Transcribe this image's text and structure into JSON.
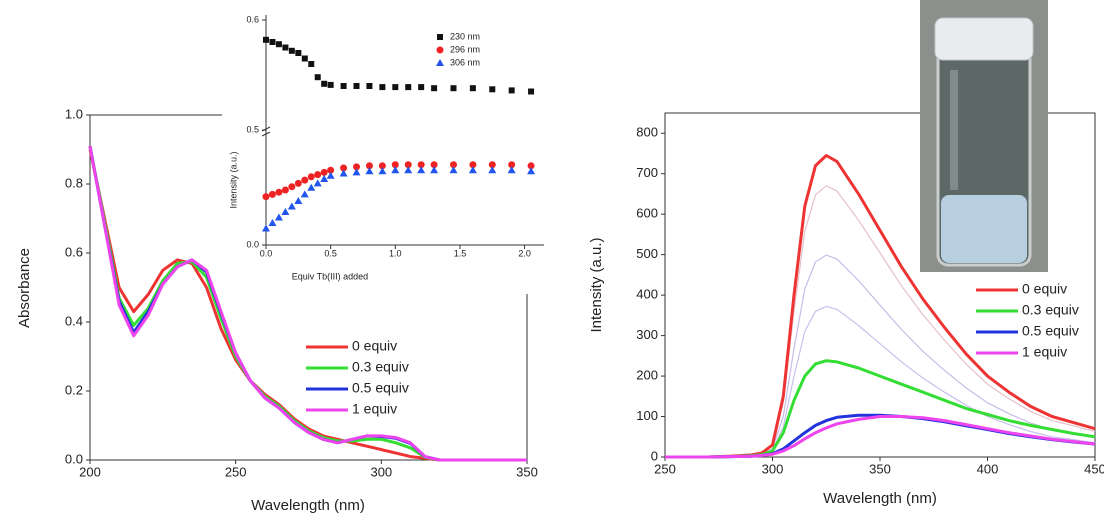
{
  "chart_data": [
    {
      "type": "line",
      "x_label": "Wavelength (nm)",
      "y_label": "Absorbance",
      "x": [
        200,
        205,
        210,
        215,
        220,
        225,
        230,
        235,
        240,
        245,
        250,
        255,
        260,
        265,
        270,
        275,
        280,
        285,
        290,
        295,
        300,
        305,
        310,
        315,
        320,
        330,
        340,
        350
      ],
      "xlim": [
        200,
        350
      ],
      "xticks": [
        200,
        250,
        300,
        350
      ],
      "ylim": [
        0,
        1.0
      ],
      "yticks": [
        {
          "value": 0,
          "label": "0.0"
        },
        0.2,
        0.4,
        0.6,
        0.8,
        {
          "value": 1.0,
          "label": "1.0"
        }
      ],
      "legend": "lower right",
      "series": [
        {
          "name": "0 equiv",
          "color": "#ee3333",
          "values": [
            0.9,
            0.7,
            0.5,
            0.43,
            0.48,
            0.55,
            0.58,
            0.57,
            0.5,
            0.38,
            0.29,
            0.23,
            0.19,
            0.16,
            0.12,
            0.09,
            0.07,
            0.06,
            0.05,
            0.04,
            0.03,
            0.02,
            0.01,
            0.005,
            0,
            0,
            0,
            0
          ]
        },
        {
          "name": "0.3 equiv",
          "color": "#33dd33",
          "values": [
            0.91,
            0.69,
            0.47,
            0.39,
            0.44,
            0.52,
            0.57,
            0.575,
            0.53,
            0.41,
            0.3,
            0.23,
            0.185,
            0.155,
            0.115,
            0.085,
            0.065,
            0.055,
            0.055,
            0.06,
            0.06,
            0.05,
            0.035,
            0.008,
            0,
            0,
            0,
            0
          ]
        },
        {
          "name": "0.5 equiv",
          "color": "#2233dd",
          "values": [
            0.91,
            0.68,
            0.46,
            0.37,
            0.43,
            0.51,
            0.56,
            0.58,
            0.545,
            0.425,
            0.31,
            0.23,
            0.18,
            0.15,
            0.11,
            0.08,
            0.06,
            0.05,
            0.06,
            0.07,
            0.068,
            0.063,
            0.048,
            0.01,
            0,
            0,
            0,
            0
          ]
        },
        {
          "name": "1 equiv",
          "color": "#ee44ee",
          "values": [
            0.91,
            0.68,
            0.45,
            0.36,
            0.42,
            0.51,
            0.56,
            0.58,
            0.55,
            0.43,
            0.31,
            0.23,
            0.18,
            0.15,
            0.11,
            0.08,
            0.06,
            0.05,
            0.06,
            0.07,
            0.07,
            0.065,
            0.05,
            0.01,
            0,
            0,
            0,
            0
          ]
        }
      ]
    },
    {
      "type": "scatter",
      "x_label": "Equiv Tb(III) added",
      "y_label": "Intensity (a.u.)",
      "x": [
        0,
        0.05,
        0.1,
        0.15,
        0.2,
        0.25,
        0.3,
        0.35,
        0.4,
        0.45,
        0.5,
        0.6,
        0.7,
        0.8,
        0.9,
        1.0,
        1.1,
        1.2,
        1.3,
        1.45,
        1.6,
        1.75,
        1.9,
        2.05
      ],
      "xlim": [
        0,
        2.15
      ],
      "xticks": [
        {
          "value": 0,
          "label": "0.0"
        },
        0.5,
        {
          "value": 1,
          "label": "1.0"
        },
        1.5,
        {
          "value": 2,
          "label": "2.0"
        }
      ],
      "ylim": [
        0,
        0.6
      ],
      "ybreak": [
        0.1,
        0.5
      ],
      "yticks": [
        {
          "value": 0,
          "label": "0.0"
        },
        0.5,
        0.6
      ],
      "legend": "upper right",
      "series": [
        {
          "name": "230 nm",
          "color": "#111111",
          "marker": "square",
          "values": [
            0.582,
            0.58,
            0.578,
            0.575,
            0.572,
            0.57,
            0.565,
            0.56,
            0.548,
            0.542,
            0.541,
            0.54,
            0.54,
            0.54,
            0.539,
            0.539,
            0.539,
            0.539,
            0.538,
            0.538,
            0.538,
            0.537,
            0.536,
            0.535
          ]
        },
        {
          "name": "296 nm",
          "color": "#ee2222",
          "marker": "circle",
          "values": [
            0.044,
            0.046,
            0.048,
            0.05,
            0.053,
            0.056,
            0.059,
            0.062,
            0.064,
            0.066,
            0.068,
            0.07,
            0.071,
            0.072,
            0.072,
            0.073,
            0.073,
            0.073,
            0.073,
            0.073,
            0.073,
            0.073,
            0.073,
            0.072
          ]
        },
        {
          "name": "306 nm",
          "color": "#2255ee",
          "marker": "triangle",
          "values": [
            0.015,
            0.02,
            0.025,
            0.03,
            0.035,
            0.04,
            0.046,
            0.052,
            0.056,
            0.06,
            0.063,
            0.065,
            0.066,
            0.067,
            0.067,
            0.068,
            0.068,
            0.068,
            0.068,
            0.068,
            0.068,
            0.068,
            0.068,
            0.067
          ]
        }
      ]
    },
    {
      "type": "line",
      "x_label": "Wavelength (nm)",
      "y_label": "Intensity (a.u.)",
      "x": [
        250,
        260,
        270,
        280,
        290,
        295,
        300,
        305,
        310,
        315,
        320,
        325,
        330,
        340,
        350,
        360,
        370,
        380,
        390,
        400,
        410,
        420,
        430,
        440,
        450
      ],
      "xlim": [
        250,
        450
      ],
      "xticks": [
        250,
        300,
        350,
        400,
        450
      ],
      "ylim": [
        0,
        850
      ],
      "yticks": [
        0,
        100,
        200,
        300,
        400,
        500,
        600,
        700,
        800
      ],
      "legend": "center right",
      "series": [
        {
          "color": "#e6c0c8",
          "values": [
            0,
            0,
            0,
            2,
            4,
            9,
            27,
            135,
            360,
            558,
            648,
            670,
            657,
            585,
            504,
            423,
            351,
            288,
            230,
            180,
            144,
            113,
            90,
            77,
            63
          ]
        },
        {
          "color": "#c8bce6",
          "values": [
            0,
            0,
            0,
            1,
            3,
            7,
            20,
            100,
            268,
            415,
            482,
            499,
            489,
            436,
            375,
            315,
            261,
            214,
            171,
            134,
            107,
            84,
            67,
            57,
            47
          ]
        },
        {
          "color": "#c8c0ee",
          "values": [
            0,
            0,
            0,
            1,
            3,
            5,
            15,
            75,
            200,
            310,
            360,
            372,
            365,
            325,
            280,
            235,
            195,
            160,
            128,
            100,
            80,
            63,
            50,
            43,
            35
          ]
        },
        {
          "name": "0 equiv",
          "color": "#ee3333",
          "values": [
            0,
            0,
            0,
            2,
            5,
            10,
            30,
            150,
            400,
            620,
            720,
            745,
            730,
            650,
            560,
            470,
            390,
            320,
            255,
            200,
            160,
            125,
            100,
            85,
            70
          ]
        },
        {
          "name": "0.3 equiv",
          "color": "#33dd33",
          "values": [
            0,
            0,
            0,
            1,
            3,
            6,
            15,
            60,
            140,
            200,
            230,
            238,
            235,
            220,
            200,
            180,
            160,
            140,
            120,
            105,
            90,
            78,
            68,
            58,
            50
          ]
        },
        {
          "name": "0.5 equiv",
          "color": "#2233dd",
          "values": [
            0,
            0,
            0,
            1,
            2,
            4,
            8,
            20,
            40,
            60,
            78,
            90,
            98,
            103,
            103,
            100,
            95,
            87,
            77,
            68,
            58,
            50,
            43,
            37,
            32
          ]
        },
        {
          "name": "1 equiv",
          "color": "#ee44ee",
          "values": [
            0,
            0,
            0,
            1,
            2,
            4,
            7,
            15,
            28,
            45,
            60,
            72,
            82,
            93,
            100,
            100,
            97,
            90,
            80,
            70,
            60,
            52,
            44,
            38,
            32
          ]
        }
      ]
    }
  ]
}
